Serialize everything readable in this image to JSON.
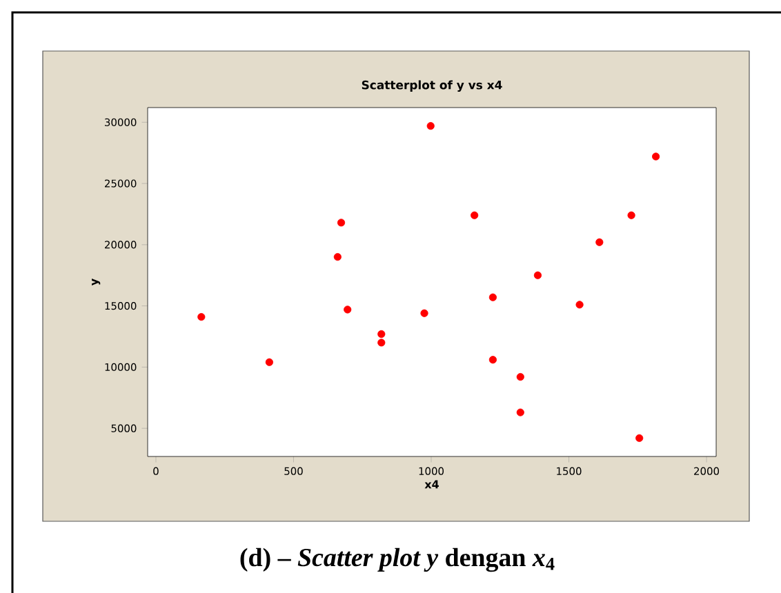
{
  "chart_data": {
    "type": "scatter",
    "title": "Scatterplot of y vs x4",
    "xlabel": "x4",
    "ylabel": "y",
    "annotations": [
      "(d) – *Scatter plot y* dengan *x*$_{4}$"
    ],
    "x": [
      165,
      412,
      660,
      673,
      696,
      819,
      819,
      975,
      998,
      1157,
      1224,
      1224,
      1324,
      1324,
      1387,
      1539,
      1611,
      1727,
      1756,
      1816
    ],
    "values": [
      14100,
      10400,
      19000,
      21800,
      14700,
      12700,
      12000,
      14400,
      29700,
      22400,
      15700,
      10600,
      9200,
      6300,
      17500,
      15100,
      20200,
      22400,
      4200,
      27200
    ],
    "color": "#ff0000",
    "xlim": [
      -30,
      2035
    ],
    "ylim": [
      2700,
      31200
    ],
    "xticks": [
      0,
      500,
      1000,
      1500,
      2000
    ],
    "yticks": [
      5000,
      10000,
      15000,
      20000,
      25000,
      30000
    ]
  }
}
